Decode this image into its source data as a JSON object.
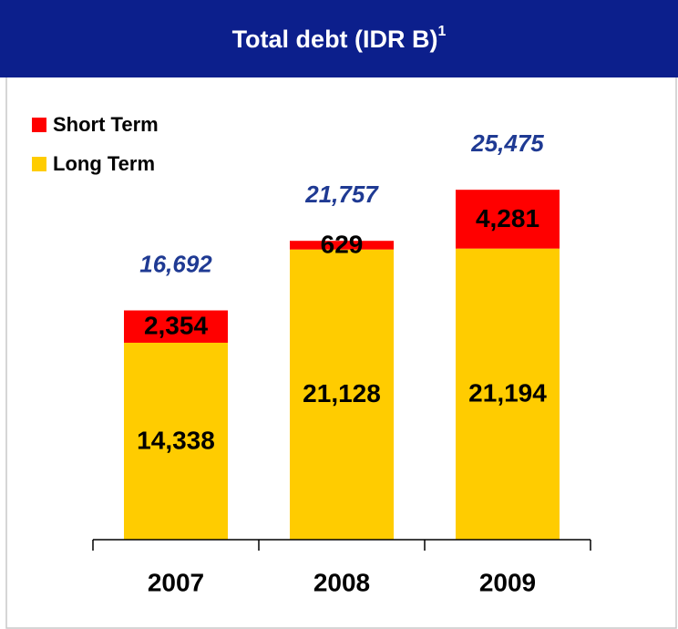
{
  "chart_data": {
    "type": "stacked_bar",
    "title": "Total debt (IDR B)",
    "title_superscript": "1",
    "categories": [
      "2007",
      "2008",
      "2009"
    ],
    "series": [
      {
        "name": "Long Term",
        "color": "#ffcc00",
        "values": [
          14338,
          21128,
          21194
        ],
        "value_labels": [
          "14,338",
          "21,128",
          "21,194"
        ]
      },
      {
        "name": "Short Term",
        "color": "#ff0000",
        "values": [
          2354,
          629,
          4281
        ],
        "value_labels": [
          "2,354",
          "629",
          "4,281"
        ]
      }
    ],
    "totals": {
      "values": [
        16692,
        21757,
        25475
      ],
      "value_labels": [
        "16,692",
        "21,757",
        "25,475"
      ],
      "color": "#1f3a93"
    },
    "ylim": [
      0,
      30000
    ],
    "legend": "top-left"
  }
}
